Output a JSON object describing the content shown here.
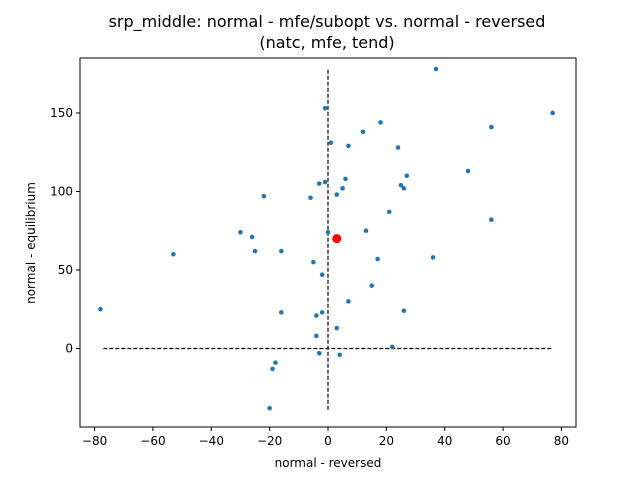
{
  "chart_data": {
    "type": "scatter",
    "title": "srp_middle: normal - mfe/subopt vs. normal - reversed",
    "subtitle": "(natc, mfe, tend)",
    "xlabel": "normal - reversed",
    "ylabel": "normal - equilibrium",
    "xlim": [
      -85,
      85
    ],
    "ylim": [
      -50,
      185
    ],
    "xticks": [
      -80,
      -60,
      -40,
      -20,
      0,
      20,
      40,
      60,
      80
    ],
    "yticks": [
      0,
      50,
      100,
      150
    ],
    "grid": false,
    "points": [
      [
        37,
        178
      ],
      [
        -1,
        153
      ],
      [
        77,
        150
      ],
      [
        56,
        141
      ],
      [
        12,
        138
      ],
      [
        18,
        144
      ],
      [
        1,
        131
      ],
      [
        7,
        129
      ],
      [
        24,
        128
      ],
      [
        48,
        113
      ],
      [
        27,
        110
      ],
      [
        6,
        108
      ],
      [
        -3,
        105
      ],
      [
        -1,
        106
      ],
      [
        25,
        104
      ],
      [
        26,
        102
      ],
      [
        5,
        102
      ],
      [
        -22,
        97
      ],
      [
        -6,
        96
      ],
      [
        3,
        98
      ],
      [
        21,
        87
      ],
      [
        56,
        82
      ],
      [
        0,
        74
      ],
      [
        -30,
        74
      ],
      [
        13,
        75
      ],
      [
        -26,
        71
      ],
      [
        -25,
        62
      ],
      [
        -16,
        62
      ],
      [
        -53,
        60
      ],
      [
        36,
        58
      ],
      [
        -5,
        55
      ],
      [
        17,
        57
      ],
      [
        -2,
        47
      ],
      [
        15,
        40
      ],
      [
        7,
        30
      ],
      [
        -78,
        25
      ],
      [
        -16,
        23
      ],
      [
        -2,
        23
      ],
      [
        26,
        24
      ],
      [
        -4,
        21
      ],
      [
        3,
        13
      ],
      [
        -4,
        8
      ],
      [
        22,
        1
      ],
      [
        -3,
        -3
      ],
      [
        4,
        -4
      ],
      [
        -18,
        -9
      ],
      [
        -19,
        -13
      ],
      [
        -20,
        -38
      ]
    ],
    "highlight": {
      "x": 3,
      "y": 70
    },
    "reference_lines": [
      {
        "orientation": "horizontal",
        "value": 0,
        "from": -77,
        "to": 77
      },
      {
        "orientation": "vertical",
        "value": 0,
        "from": -39,
        "to": 178
      }
    ],
    "colors": {
      "points": "#1f77b4",
      "highlight": "#ff0000",
      "reference": "#000000"
    }
  }
}
